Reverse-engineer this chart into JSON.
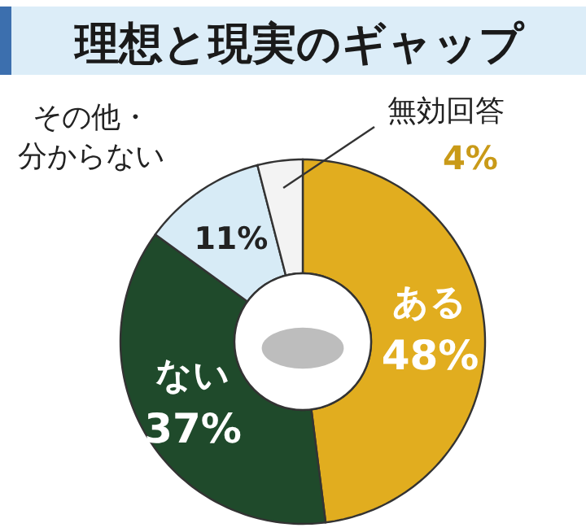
{
  "chart_data": {
    "type": "donut",
    "title": "理想と現実のギャップ",
    "categories": [
      "ある",
      "ない",
      "その他・分からない",
      "無効回答"
    ],
    "values": [
      48,
      37,
      11,
      4
    ],
    "value_labels": [
      "48%",
      "37%",
      "11%",
      "4%"
    ],
    "colors": [
      "#e1ad1f",
      "#1f4a2b",
      "#d7ebf6",
      "#f3f3f3"
    ]
  }
}
